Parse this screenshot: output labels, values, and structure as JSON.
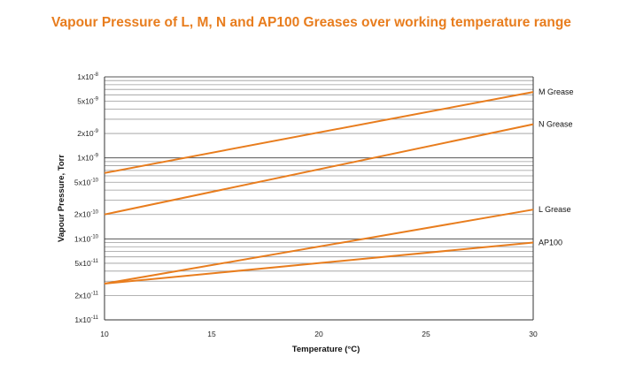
{
  "chart_data": {
    "type": "line",
    "title": "Vapour Pressure of L, M, N and AP100 Greases over working temperature range",
    "xlabel": "Temperature (°C)",
    "ylabel": "Vapour Pressure, Torr",
    "xlim": [
      10,
      30
    ],
    "ylim": [
      1e-11,
      1e-08
    ],
    "yscale": "log",
    "grid": true,
    "x_ticks": [
      "10",
      "15",
      "20",
      "25",
      "30"
    ],
    "y_ticks": [
      {
        "value": 1e-08,
        "mant": "1x10",
        "exp": "-8"
      },
      {
        "value": 5e-09,
        "mant": "5x10",
        "exp": "-9"
      },
      {
        "value": 2e-09,
        "mant": "2x10",
        "exp": "-9"
      },
      {
        "value": 1e-09,
        "mant": "1x10",
        "exp": "-9"
      },
      {
        "value": 5e-10,
        "mant": "5x10",
        "exp": "-10"
      },
      {
        "value": 2e-10,
        "mant": "2x10",
        "exp": "-10"
      },
      {
        "value": 1e-10,
        "mant": "1x10",
        "exp": "-10"
      },
      {
        "value": 5e-11,
        "mant": "5x10",
        "exp": "-11"
      },
      {
        "value": 2e-11,
        "mant": "2x10",
        "exp": "-11"
      },
      {
        "value": 1e-11,
        "mant": "1x10",
        "exp": "-11"
      }
    ],
    "series_color": "#e87d1e",
    "series": [
      {
        "name": "M Grease",
        "x": [
          10,
          30
        ],
        "y": [
          6.5e-10,
          6.5e-09
        ]
      },
      {
        "name": "N Grease",
        "x": [
          10,
          30
        ],
        "y": [
          2e-10,
          2.6e-09
        ]
      },
      {
        "name": "L Grease",
        "x": [
          10,
          30
        ],
        "y": [
          2.8e-11,
          2.3e-10
        ]
      },
      {
        "name": "AP100",
        "x": [
          10,
          30
        ],
        "y": [
          2.8e-11,
          9e-11
        ]
      }
    ]
  }
}
